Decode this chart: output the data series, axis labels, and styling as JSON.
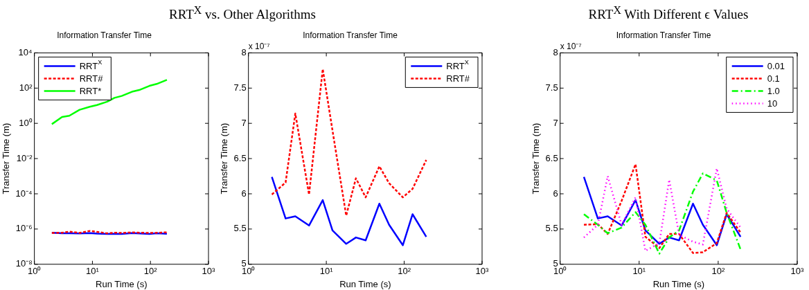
{
  "chart_data": [
    {
      "type": "line",
      "title": "RRT$^{X}$ vs. Other Algorithms",
      "subtitle": "Information Transfer Time",
      "xlabel": "Run Time (s)",
      "ylabel": "Transfer Time (m)",
      "log": "xy",
      "grid": false,
      "legend": "top left",
      "marker": "none",
      "x": [
        2,
        3,
        4,
        6,
        9,
        12,
        18,
        24,
        32,
        48,
        64,
        96,
        128,
        192
      ],
      "xlim": [
        1,
        1000
      ],
      "xticks": [
        {
          "value": 1,
          "label": "10⁰"
        },
        {
          "value": 10,
          "label": "10¹"
        },
        {
          "value": 100,
          "label": "10²"
        },
        {
          "value": 1000,
          "label": "10³"
        }
      ],
      "ylim": [
        1e-08,
        10000
      ],
      "yticks": [
        {
          "value": 1e-08,
          "label": "10⁻⁸"
        },
        {
          "value": 1e-06,
          "label": "10⁻⁶"
        },
        {
          "value": 0.0001,
          "label": "10⁻⁴"
        },
        {
          "value": 0.01,
          "label": "10⁻²"
        },
        {
          "value": 1,
          "label": "10⁰"
        },
        {
          "value": 100,
          "label": "10²"
        },
        {
          "value": 10000,
          "label": "10⁴"
        }
      ],
      "series": [
        {
          "name": "RRT$^{X}$",
          "color": "#0000ff",
          "line_style": "solid",
          "values": [
            6.2e-07,
            5.7e-07,
            5.7e-07,
            5.6e-07,
            5.9e-07,
            5.5e-07,
            5.3e-07,
            5.4e-07,
            5.3e-07,
            5.9e-07,
            5.6e-07,
            5.3e-07,
            5.7e-07,
            5.4e-07
          ]
        },
        {
          "name": "RRT#",
          "color": "#ff0000",
          "line_style": "dashed",
          "values": [
            6e-07,
            6.2e-07,
            7.1e-07,
            6e-07,
            7.8e-07,
            6.9e-07,
            5.7e-07,
            6.2e-07,
            6e-07,
            6.4e-07,
            6.2e-07,
            6e-07,
            6.1e-07,
            6.5e-07
          ]
        },
        {
          "name": "RRT*",
          "color": "#00ff00",
          "line_style": "solid",
          "values": [
            0.9,
            2.3,
            2.7,
            5.9,
            8.7,
            11,
            17,
            28,
            36,
            62,
            78,
            134,
            172,
            295
          ]
        }
      ]
    },
    {
      "type": "line",
      "title": "Information Transfer Time",
      "xlabel": "Run Time (s)",
      "ylabel": "Transfer Time (m)",
      "log": "x",
      "grid": false,
      "legend": "top right",
      "marker": "none",
      "annotations": [
        "x 10⁻⁷"
      ],
      "x": [
        2,
        3,
        4,
        6,
        9,
        12,
        18,
        24,
        32,
        48,
        64,
        96,
        128,
        192
      ],
      "xlim": [
        1,
        1000
      ],
      "xticks": [
        {
          "value": 1,
          "label": "10⁰"
        },
        {
          "value": 10,
          "label": "10¹"
        },
        {
          "value": 100,
          "label": "10²"
        },
        {
          "value": 1000,
          "label": "10³"
        }
      ],
      "ylim": [
        5,
        8
      ],
      "yticks": [
        5,
        5.5,
        6,
        6.5,
        7,
        7.5,
        8
      ],
      "series": [
        {
          "name": "RRT$^{X}$",
          "color": "#0000ff",
          "line_style": "solid",
          "values": [
            6.24,
            5.65,
            5.68,
            5.55,
            5.91,
            5.48,
            5.29,
            5.38,
            5.34,
            5.86,
            5.56,
            5.27,
            5.71,
            5.39
          ]
        },
        {
          "name": "RRT#",
          "color": "#ff0000",
          "line_style": "dashed",
          "values": [
            5.99,
            6.16,
            7.14,
            5.99,
            7.77,
            6.9,
            5.69,
            6.22,
            5.95,
            6.39,
            6.15,
            5.95,
            6.07,
            6.48
          ]
        }
      ]
    },
    {
      "type": "line",
      "title": "RRT$^{X}$ With Different ϵ Values",
      "subtitle": "Information Transfer Time",
      "xlabel": "Run Time (s)",
      "ylabel": "Transfer Time (m)",
      "log": "x",
      "grid": false,
      "legend": "top right",
      "marker": "none",
      "annotations": [
        "x 10⁻⁷"
      ],
      "x": [
        2,
        3,
        4,
        6,
        9,
        12,
        18,
        24,
        32,
        48,
        64,
        96,
        128,
        192
      ],
      "xlim": [
        1,
        1000
      ],
      "xticks": [
        {
          "value": 1,
          "label": "10⁰"
        },
        {
          "value": 10,
          "label": "10¹"
        },
        {
          "value": 100,
          "label": "10²"
        },
        {
          "value": 1000,
          "label": "10³"
        }
      ],
      "ylim": [
        5,
        8
      ],
      "yticks": [
        5,
        5.5,
        6,
        6.5,
        7,
        7.5,
        8
      ],
      "series": [
        {
          "name": "0.01",
          "color": "#0000ff",
          "line_style": "solid",
          "values": [
            6.24,
            5.65,
            5.68,
            5.55,
            5.91,
            5.48,
            5.29,
            5.38,
            5.34,
            5.86,
            5.56,
            5.27,
            5.71,
            5.39
          ]
        },
        {
          "name": "0.1",
          "color": "#ff0000",
          "line_style": "dashed",
          "values": [
            5.56,
            5.57,
            5.43,
            5.9,
            6.42,
            5.39,
            5.23,
            5.43,
            5.43,
            5.16,
            5.17,
            5.3,
            5.73,
            5.45
          ]
        },
        {
          "name": "1.0",
          "color": "#00ff00",
          "line_style": "dashdot",
          "values": [
            5.71,
            5.56,
            5.44,
            5.52,
            5.74,
            5.56,
            5.15,
            5.38,
            5.48,
            6.03,
            6.29,
            6.19,
            5.73,
            5.21
          ]
        },
        {
          "name": "10",
          "color": "#ff00ff",
          "line_style": "dotted",
          "values": [
            5.38,
            5.56,
            6.25,
            5.56,
            5.95,
            5.19,
            5.3,
            6.2,
            5.42,
            5.32,
            5.28,
            6.36,
            5.79,
            5.52
          ]
        }
      ]
    }
  ]
}
